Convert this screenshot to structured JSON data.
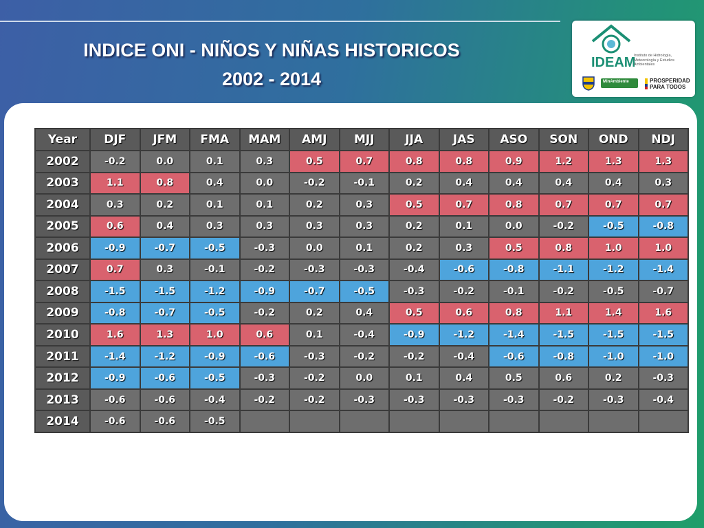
{
  "header": {
    "title_line1": "INDICE ONI - NIÑOS Y NIÑAS HISTORICOS",
    "title_line2": "2002 - 2014"
  },
  "logo": {
    "name": "IDEAM",
    "subtitle": "Instituto de Hidrología, Meteorología y Estudios Ambientales",
    "ministry": "MinAmbiente",
    "slogan": "PROSPERIDAD PARA TODOS"
  },
  "colors": {
    "warm": "#d9626e",
    "cold": "#4ea4dc",
    "neutral": "#6e6e6e"
  },
  "chart_data": {
    "type": "table",
    "columns": [
      "Year",
      "DJF",
      "JFM",
      "FMA",
      "MAM",
      "AMJ",
      "MJJ",
      "JJA",
      "JAS",
      "ASO",
      "SON",
      "OND",
      "NDJ"
    ],
    "rows": [
      {
        "year": "2002",
        "values": [
          "-0.2",
          "0.0",
          "0.1",
          "0.3",
          "0.5",
          "0.7",
          "0.8",
          "0.8",
          "0.9",
          "1.2",
          "1.3",
          "1.3"
        ],
        "classes": [
          "n",
          "n",
          "n",
          "n",
          "w",
          "w",
          "w",
          "w",
          "w",
          "w",
          "w",
          "w"
        ]
      },
      {
        "year": "2003",
        "values": [
          "1.1",
          "0.8",
          "0.4",
          "0.0",
          "-0.2",
          "-0.1",
          "0.2",
          "0.4",
          "0.4",
          "0.4",
          "0.4",
          "0.3"
        ],
        "classes": [
          "w",
          "w",
          "n",
          "n",
          "n",
          "n",
          "n",
          "n",
          "n",
          "n",
          "n",
          "n"
        ]
      },
      {
        "year": "2004",
        "values": [
          "0.3",
          "0.2",
          "0.1",
          "0.1",
          "0.2",
          "0.3",
          "0.5",
          "0.7",
          "0.8",
          "0.7",
          "0.7",
          "0.7"
        ],
        "classes": [
          "n",
          "n",
          "n",
          "n",
          "n",
          "n",
          "w",
          "w",
          "w",
          "w",
          "w",
          "w"
        ]
      },
      {
        "year": "2005",
        "values": [
          "0.6",
          "0.4",
          "0.3",
          "0.3",
          "0.3",
          "0.3",
          "0.2",
          "0.1",
          "0.0",
          "-0.2",
          "-0.5",
          "-0.8"
        ],
        "classes": [
          "w",
          "n",
          "n",
          "n",
          "n",
          "n",
          "n",
          "n",
          "n",
          "n",
          "c",
          "c"
        ]
      },
      {
        "year": "2006",
        "values": [
          "-0.9",
          "-0.7",
          "-0.5",
          "-0.3",
          "0.0",
          "0.1",
          "0.2",
          "0.3",
          "0.5",
          "0.8",
          "1.0",
          "1.0"
        ],
        "classes": [
          "c",
          "c",
          "c",
          "n",
          "n",
          "n",
          "n",
          "n",
          "w",
          "w",
          "w",
          "w"
        ]
      },
      {
        "year": "2007",
        "values": [
          "0.7",
          "0.3",
          "-0.1",
          "-0.2",
          "-0.3",
          "-0.3",
          "-0.4",
          "-0.6",
          "-0.8",
          "-1.1",
          "-1.2",
          "-1.4"
        ],
        "classes": [
          "w",
          "n",
          "n",
          "n",
          "n",
          "n",
          "n",
          "c",
          "c",
          "c",
          "c",
          "c"
        ]
      },
      {
        "year": "2008",
        "values": [
          "-1.5",
          "-1.5",
          "-1.2",
          "-0.9",
          "-0.7",
          "-0.5",
          "-0.3",
          "-0.2",
          "-0.1",
          "-0.2",
          "-0.5",
          "-0.7"
        ],
        "classes": [
          "c",
          "c",
          "c",
          "c",
          "c",
          "c",
          "n",
          "n",
          "n",
          "n",
          "n",
          "n"
        ]
      },
      {
        "year": "2009",
        "values": [
          "-0.8",
          "-0.7",
          "-0.5",
          "-0.2",
          "0.2",
          "0.4",
          "0.5",
          "0.6",
          "0.8",
          "1.1",
          "1.4",
          "1.6"
        ],
        "classes": [
          "c",
          "c",
          "c",
          "n",
          "n",
          "n",
          "w",
          "w",
          "w",
          "w",
          "w",
          "w"
        ]
      },
      {
        "year": "2010",
        "values": [
          "1.6",
          "1.3",
          "1.0",
          "0.6",
          "0.1",
          "-0.4",
          "-0.9",
          "-1.2",
          "-1.4",
          "-1.5",
          "-1.5",
          "-1.5"
        ],
        "classes": [
          "w",
          "w",
          "w",
          "w",
          "n",
          "n",
          "c",
          "c",
          "c",
          "c",
          "c",
          "c"
        ]
      },
      {
        "year": "2011",
        "values": [
          "-1.4",
          "-1.2",
          "-0.9",
          "-0.6",
          "-0.3",
          "-0.2",
          "-0.2",
          "-0.4",
          "-0.6",
          "-0.8",
          "-1.0",
          "-1.0"
        ],
        "classes": [
          "c",
          "c",
          "c",
          "c",
          "n",
          "n",
          "n",
          "n",
          "c",
          "c",
          "c",
          "c"
        ]
      },
      {
        "year": "2012",
        "values": [
          "-0.9",
          "-0.6",
          "-0.5",
          "-0.3",
          "-0.2",
          "0.0",
          "0.1",
          "0.4",
          "0.5",
          "0.6",
          "0.2",
          "-0.3"
        ],
        "classes": [
          "c",
          "c",
          "c",
          "n",
          "n",
          "n",
          "n",
          "n",
          "n",
          "n",
          "n",
          "n"
        ]
      },
      {
        "year": "2013",
        "values": [
          "-0.6",
          "-0.6",
          "-0.4",
          "-0.2",
          "-0.2",
          "-0.3",
          "-0.3",
          "-0.3",
          "-0.3",
          "-0.2",
          "-0.3",
          "-0.4"
        ],
        "classes": [
          "n",
          "n",
          "n",
          "n",
          "n",
          "n",
          "n",
          "n",
          "n",
          "n",
          "n",
          "n"
        ]
      },
      {
        "year": "2014",
        "values": [
          "-0.6",
          "-0.6",
          "-0.5",
          "",
          "",
          "",
          "",
          "",
          "",
          "",
          "",
          ""
        ],
        "classes": [
          "n",
          "n",
          "n",
          "n",
          "n",
          "n",
          "n",
          "n",
          "n",
          "n",
          "n",
          "n"
        ]
      }
    ]
  }
}
